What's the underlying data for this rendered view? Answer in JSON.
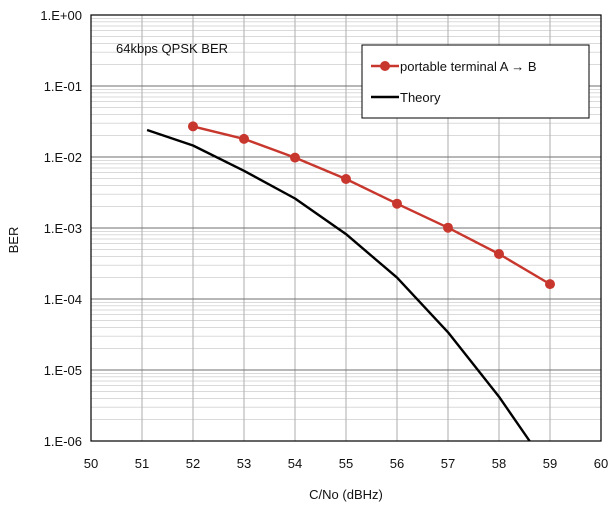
{
  "chart_data": {
    "type": "line",
    "title": "64kbps QPSK BER",
    "xlabel": "C/No (dBHz)",
    "ylabel": "BER",
    "xlim": [
      50,
      60
    ],
    "ylim": [
      1e-06,
      1
    ],
    "yscale": "log",
    "grid": true,
    "legend_position": "top-right",
    "x_ticks": [
      "50",
      "51",
      "52",
      "53",
      "54",
      "55",
      "56",
      "57",
      "58",
      "59",
      "60"
    ],
    "y_ticks": [
      "1.E+00",
      "1.E-01",
      "1.E-02",
      "1.E-03",
      "1.E-04",
      "1.E-05",
      "1.E-06"
    ],
    "series": [
      {
        "name": "portable terminal A → B",
        "color": "#c8372d",
        "marker": "circle",
        "x": [
          52,
          53,
          54,
          55,
          56,
          57,
          58,
          59
        ],
        "y": [
          0.027,
          0.018,
          0.0098,
          0.0049,
          0.0022,
          0.00101,
          0.00043,
          0.000162
        ]
      },
      {
        "name": "Theory",
        "color": "#000000",
        "marker": "none",
        "x": [
          51.1,
          52,
          53,
          54,
          55,
          56,
          57,
          58,
          58.6
        ],
        "y": [
          0.024,
          0.0145,
          0.0064,
          0.0026,
          0.00082,
          0.0002,
          3.4e-05,
          4.2e-06,
          1e-06
        ]
      }
    ]
  }
}
